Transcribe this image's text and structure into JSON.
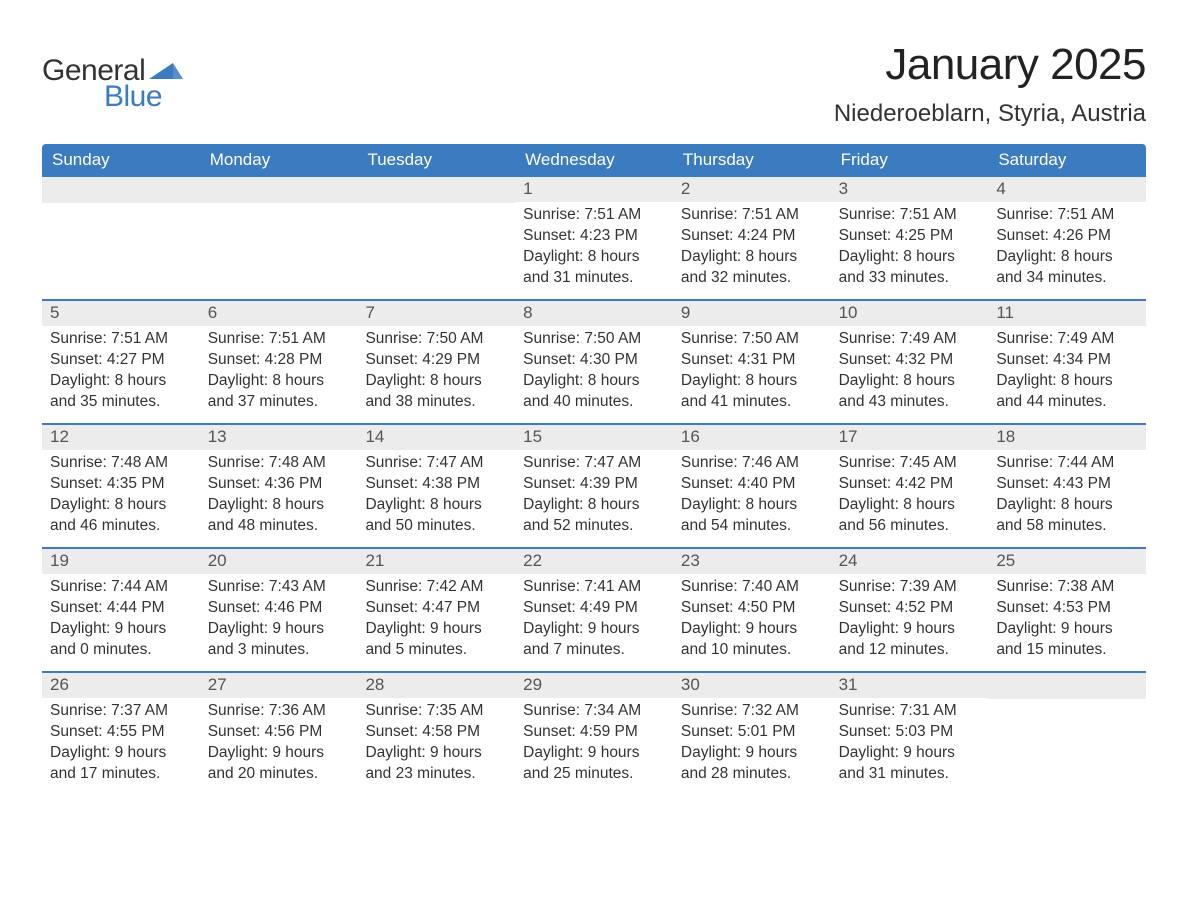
{
  "logo": {
    "text_general": "General",
    "text_blue": "Blue",
    "shape_color": "#3b7bbf"
  },
  "header": {
    "month_title": "January 2025",
    "location": "Niederoeblarn, Styria, Austria",
    "title_fontsize": 44,
    "location_fontsize": 24
  },
  "colors": {
    "header_bg": "#3b7bbf",
    "header_text": "#ffffff",
    "daynum_bg": "#ececec",
    "daynum_text": "#555555",
    "body_text": "#333333",
    "row_divider": "#3b7bbf",
    "background": "#ffffff"
  },
  "calendar": {
    "type": "table",
    "weekdays": [
      "Sunday",
      "Monday",
      "Tuesday",
      "Wednesday",
      "Thursday",
      "Friday",
      "Saturday"
    ],
    "weeks": [
      [
        null,
        null,
        null,
        {
          "day": "1",
          "sunrise": "Sunrise: 7:51 AM",
          "sunset": "Sunset: 4:23 PM",
          "dl1": "Daylight: 8 hours",
          "dl2": "and 31 minutes."
        },
        {
          "day": "2",
          "sunrise": "Sunrise: 7:51 AM",
          "sunset": "Sunset: 4:24 PM",
          "dl1": "Daylight: 8 hours",
          "dl2": "and 32 minutes."
        },
        {
          "day": "3",
          "sunrise": "Sunrise: 7:51 AM",
          "sunset": "Sunset: 4:25 PM",
          "dl1": "Daylight: 8 hours",
          "dl2": "and 33 minutes."
        },
        {
          "day": "4",
          "sunrise": "Sunrise: 7:51 AM",
          "sunset": "Sunset: 4:26 PM",
          "dl1": "Daylight: 8 hours",
          "dl2": "and 34 minutes."
        }
      ],
      [
        {
          "day": "5",
          "sunrise": "Sunrise: 7:51 AM",
          "sunset": "Sunset: 4:27 PM",
          "dl1": "Daylight: 8 hours",
          "dl2": "and 35 minutes."
        },
        {
          "day": "6",
          "sunrise": "Sunrise: 7:51 AM",
          "sunset": "Sunset: 4:28 PM",
          "dl1": "Daylight: 8 hours",
          "dl2": "and 37 minutes."
        },
        {
          "day": "7",
          "sunrise": "Sunrise: 7:50 AM",
          "sunset": "Sunset: 4:29 PM",
          "dl1": "Daylight: 8 hours",
          "dl2": "and 38 minutes."
        },
        {
          "day": "8",
          "sunrise": "Sunrise: 7:50 AM",
          "sunset": "Sunset: 4:30 PM",
          "dl1": "Daylight: 8 hours",
          "dl2": "and 40 minutes."
        },
        {
          "day": "9",
          "sunrise": "Sunrise: 7:50 AM",
          "sunset": "Sunset: 4:31 PM",
          "dl1": "Daylight: 8 hours",
          "dl2": "and 41 minutes."
        },
        {
          "day": "10",
          "sunrise": "Sunrise: 7:49 AM",
          "sunset": "Sunset: 4:32 PM",
          "dl1": "Daylight: 8 hours",
          "dl2": "and 43 minutes."
        },
        {
          "day": "11",
          "sunrise": "Sunrise: 7:49 AM",
          "sunset": "Sunset: 4:34 PM",
          "dl1": "Daylight: 8 hours",
          "dl2": "and 44 minutes."
        }
      ],
      [
        {
          "day": "12",
          "sunrise": "Sunrise: 7:48 AM",
          "sunset": "Sunset: 4:35 PM",
          "dl1": "Daylight: 8 hours",
          "dl2": "and 46 minutes."
        },
        {
          "day": "13",
          "sunrise": "Sunrise: 7:48 AM",
          "sunset": "Sunset: 4:36 PM",
          "dl1": "Daylight: 8 hours",
          "dl2": "and 48 minutes."
        },
        {
          "day": "14",
          "sunrise": "Sunrise: 7:47 AM",
          "sunset": "Sunset: 4:38 PM",
          "dl1": "Daylight: 8 hours",
          "dl2": "and 50 minutes."
        },
        {
          "day": "15",
          "sunrise": "Sunrise: 7:47 AM",
          "sunset": "Sunset: 4:39 PM",
          "dl1": "Daylight: 8 hours",
          "dl2": "and 52 minutes."
        },
        {
          "day": "16",
          "sunrise": "Sunrise: 7:46 AM",
          "sunset": "Sunset: 4:40 PM",
          "dl1": "Daylight: 8 hours",
          "dl2": "and 54 minutes."
        },
        {
          "day": "17",
          "sunrise": "Sunrise: 7:45 AM",
          "sunset": "Sunset: 4:42 PM",
          "dl1": "Daylight: 8 hours",
          "dl2": "and 56 minutes."
        },
        {
          "day": "18",
          "sunrise": "Sunrise: 7:44 AM",
          "sunset": "Sunset: 4:43 PM",
          "dl1": "Daylight: 8 hours",
          "dl2": "and 58 minutes."
        }
      ],
      [
        {
          "day": "19",
          "sunrise": "Sunrise: 7:44 AM",
          "sunset": "Sunset: 4:44 PM",
          "dl1": "Daylight: 9 hours",
          "dl2": "and 0 minutes."
        },
        {
          "day": "20",
          "sunrise": "Sunrise: 7:43 AM",
          "sunset": "Sunset: 4:46 PM",
          "dl1": "Daylight: 9 hours",
          "dl2": "and 3 minutes."
        },
        {
          "day": "21",
          "sunrise": "Sunrise: 7:42 AM",
          "sunset": "Sunset: 4:47 PM",
          "dl1": "Daylight: 9 hours",
          "dl2": "and 5 minutes."
        },
        {
          "day": "22",
          "sunrise": "Sunrise: 7:41 AM",
          "sunset": "Sunset: 4:49 PM",
          "dl1": "Daylight: 9 hours",
          "dl2": "and 7 minutes."
        },
        {
          "day": "23",
          "sunrise": "Sunrise: 7:40 AM",
          "sunset": "Sunset: 4:50 PM",
          "dl1": "Daylight: 9 hours",
          "dl2": "and 10 minutes."
        },
        {
          "day": "24",
          "sunrise": "Sunrise: 7:39 AM",
          "sunset": "Sunset: 4:52 PM",
          "dl1": "Daylight: 9 hours",
          "dl2": "and 12 minutes."
        },
        {
          "day": "25",
          "sunrise": "Sunrise: 7:38 AM",
          "sunset": "Sunset: 4:53 PM",
          "dl1": "Daylight: 9 hours",
          "dl2": "and 15 minutes."
        }
      ],
      [
        {
          "day": "26",
          "sunrise": "Sunrise: 7:37 AM",
          "sunset": "Sunset: 4:55 PM",
          "dl1": "Daylight: 9 hours",
          "dl2": "and 17 minutes."
        },
        {
          "day": "27",
          "sunrise": "Sunrise: 7:36 AM",
          "sunset": "Sunset: 4:56 PM",
          "dl1": "Daylight: 9 hours",
          "dl2": "and 20 minutes."
        },
        {
          "day": "28",
          "sunrise": "Sunrise: 7:35 AM",
          "sunset": "Sunset: 4:58 PM",
          "dl1": "Daylight: 9 hours",
          "dl2": "and 23 minutes."
        },
        {
          "day": "29",
          "sunrise": "Sunrise: 7:34 AM",
          "sunset": "Sunset: 4:59 PM",
          "dl1": "Daylight: 9 hours",
          "dl2": "and 25 minutes."
        },
        {
          "day": "30",
          "sunrise": "Sunrise: 7:32 AM",
          "sunset": "Sunset: 5:01 PM",
          "dl1": "Daylight: 9 hours",
          "dl2": "and 28 minutes."
        },
        {
          "day": "31",
          "sunrise": "Sunrise: 7:31 AM",
          "sunset": "Sunset: 5:03 PM",
          "dl1": "Daylight: 9 hours",
          "dl2": "and 31 minutes."
        },
        null
      ]
    ]
  }
}
